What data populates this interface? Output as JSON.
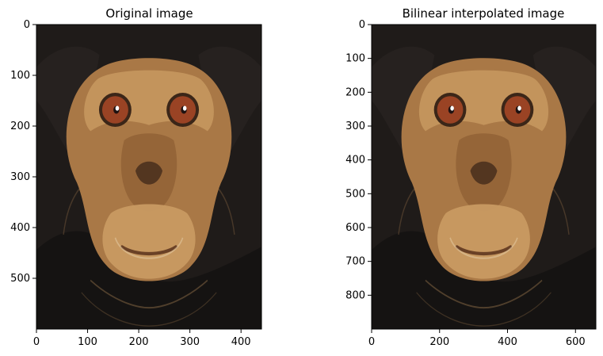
{
  "figure": {
    "colors": {
      "background": "#ffffff",
      "axis": "#000000",
      "fur": "#1f1b19",
      "face": "#a97846",
      "face_light": "#c89a62",
      "eye": "#9a4324",
      "eye_ring": "#3b2618"
    }
  },
  "chart_data": [
    {
      "type": "image",
      "title": "Original image",
      "image_description": "Chimpanzee face portrait",
      "xlim": [
        0,
        440
      ],
      "ylim": [
        600,
        0
      ],
      "xticks": [
        0,
        100,
        200,
        300,
        400
      ],
      "yticks": [
        0,
        100,
        200,
        300,
        400,
        500
      ],
      "xtick_labels": [
        "0",
        "100",
        "200",
        "300",
        "400"
      ],
      "ytick_labels": [
        "0",
        "100",
        "200",
        "300",
        "400",
        "500"
      ]
    },
    {
      "type": "image",
      "title": "Bilinear interpolated image",
      "image_description": "Chimpanzee face portrait resized with bilinear interpolation",
      "xlim": [
        0,
        660
      ],
      "ylim": [
        900,
        0
      ],
      "xticks": [
        0,
        200,
        400,
        600
      ],
      "yticks": [
        0,
        100,
        200,
        300,
        400,
        500,
        600,
        700,
        800
      ],
      "xtick_labels": [
        "0",
        "200",
        "400",
        "600"
      ],
      "ytick_labels": [
        "0",
        "100",
        "200",
        "300",
        "400",
        "500",
        "600",
        "700",
        "800"
      ]
    }
  ]
}
